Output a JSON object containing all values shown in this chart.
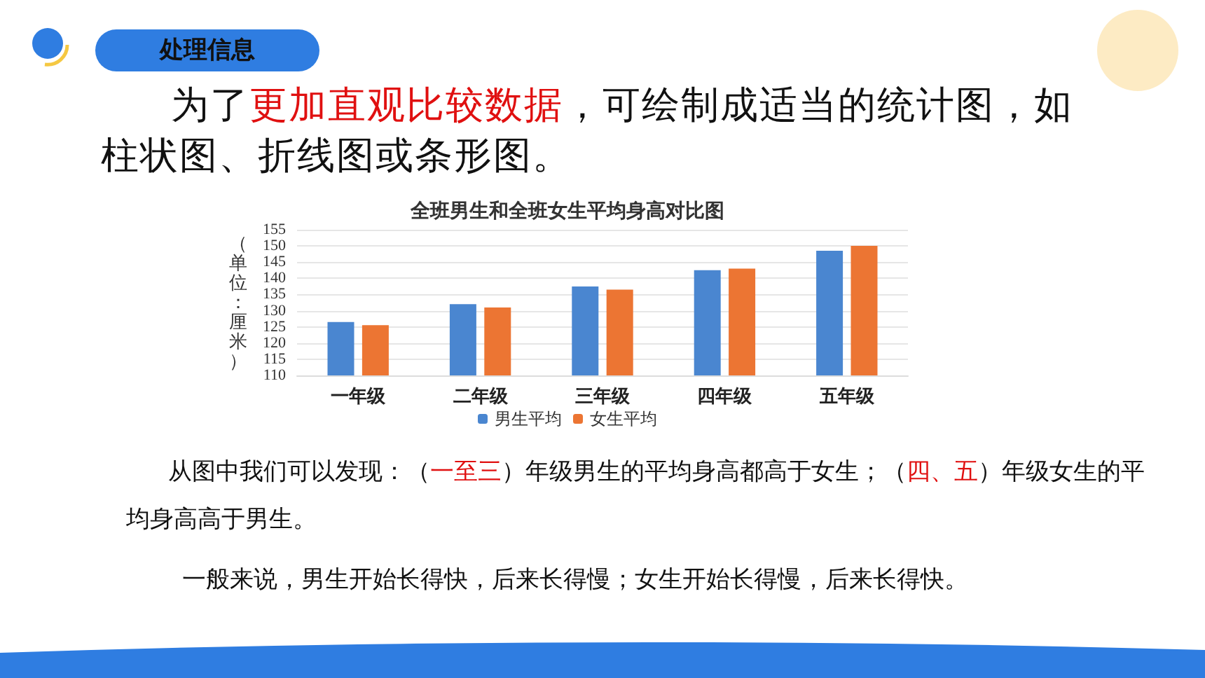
{
  "chart_data": {
    "type": "bar",
    "title": "全班男生和全班女生平均身高对比图",
    "ylabel": "（单位：厘米）",
    "categories": [
      "一年级",
      "二年级",
      "三年级",
      "四年级",
      "五年级"
    ],
    "series": [
      {
        "name": "男生平均",
        "color": "#4a86d0",
        "values": [
          126.5,
          132,
          137.5,
          142.5,
          148.5
        ]
      },
      {
        "name": "女生平均",
        "color": "#ec7533",
        "values": [
          125.5,
          131,
          136.5,
          143,
          150
        ]
      }
    ],
    "ylim": [
      110,
      155
    ],
    "yticks": [
      110,
      115,
      120,
      125,
      130,
      135,
      140,
      145,
      150,
      155
    ],
    "grid": "y",
    "legend": "bottom",
    "annotations": [
      "处理信息",
      "为了",
      "更加直观比较数据",
      "，可绘制成适当的统计图，如柱状图、折线图或条形图。",
      "从图中我们可以发现：（",
      "一至三",
      "）年级男生的平均身高都高于女生；（",
      "四、五",
      "）年级女生的平均身高高于男生。",
      "一般来说，男生开始长得快，后来长得慢；女生开始长得慢，后来长得快。"
    ]
  }
}
